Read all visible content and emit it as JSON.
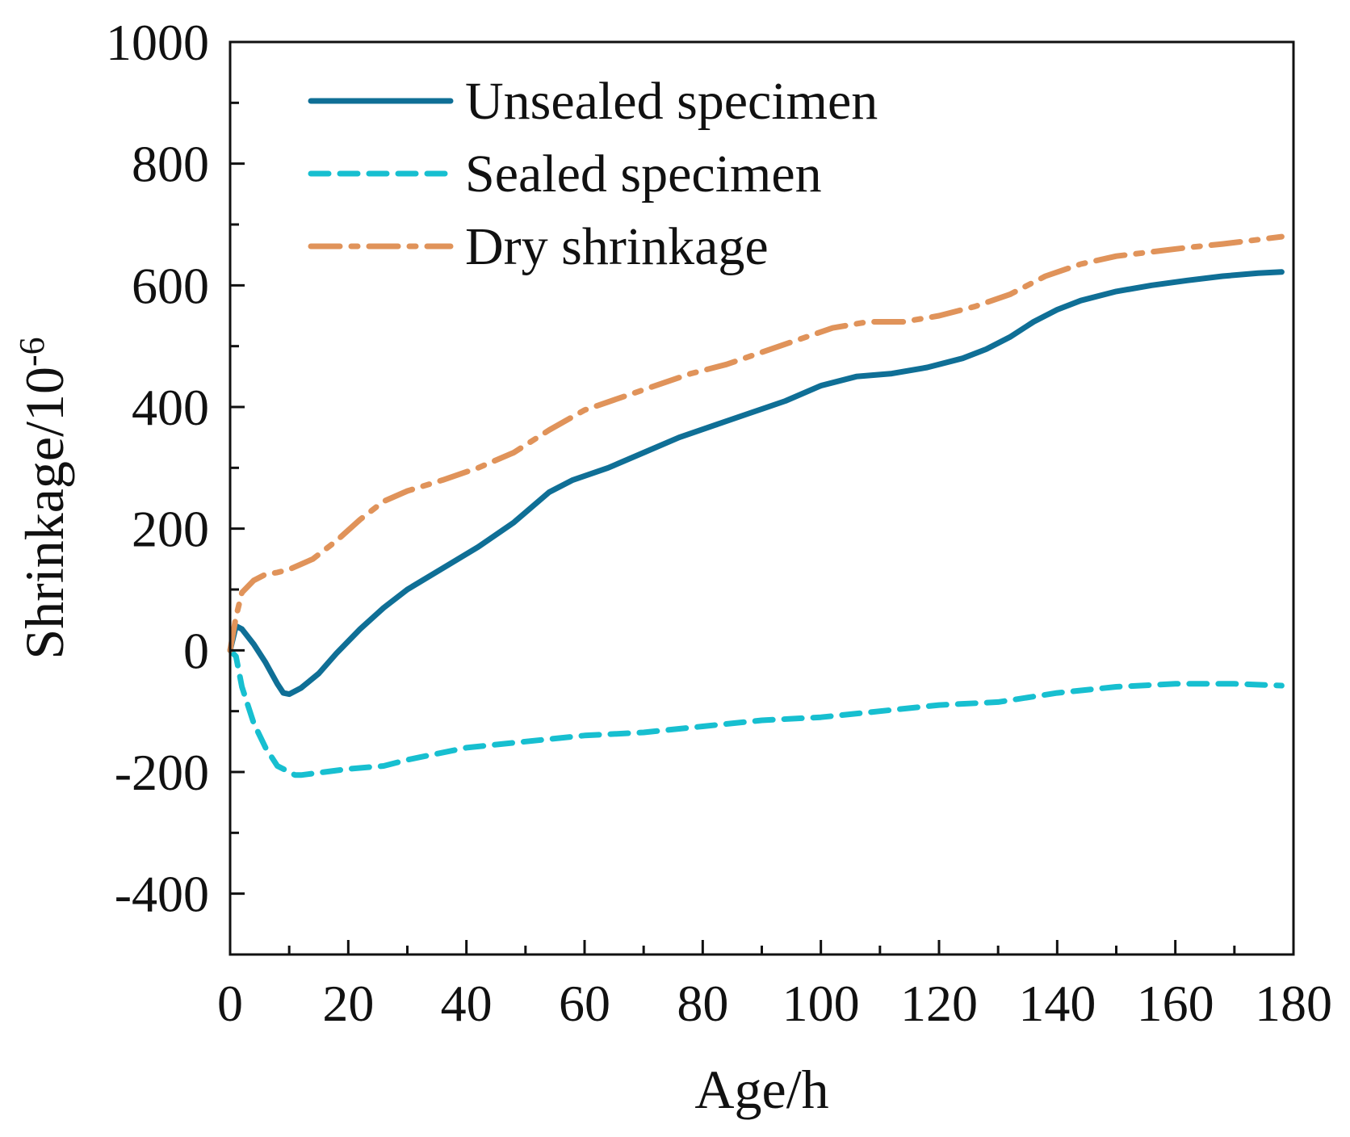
{
  "chart_data": {
    "type": "line",
    "title": "",
    "xlabel": "Age/h",
    "ylabel": "Shrinkage/10",
    "ylabel_exponent": "-6",
    "xlim": [
      0,
      180
    ],
    "ylim": [
      -500,
      1000
    ],
    "x_ticks": [
      0,
      20,
      40,
      60,
      80,
      100,
      120,
      140,
      160,
      180
    ],
    "x_tick_labels": [
      "0",
      "20",
      "40",
      "60",
      "80",
      "100",
      "120",
      "140",
      "160",
      "180"
    ],
    "y_ticks": [
      -400,
      -200,
      0,
      200,
      400,
      600,
      800,
      1000
    ],
    "y_tick_labels": [
      "-400",
      "-200",
      "0",
      "200",
      "400",
      "600",
      "800",
      "1000"
    ],
    "grid": false,
    "legend_position": "top-left",
    "series": [
      {
        "name": "Unsealed specimen",
        "color": "#0f6f96",
        "dash": "solid",
        "x": [
          0,
          1,
          2,
          4,
          6,
          8,
          9,
          10,
          12,
          15,
          18,
          22,
          26,
          30,
          36,
          42,
          48,
          54,
          58,
          64,
          70,
          76,
          82,
          88,
          94,
          100,
          106,
          112,
          118,
          124,
          128,
          132,
          136,
          140,
          144,
          150,
          156,
          162,
          168,
          174,
          178
        ],
        "y": [
          0,
          40,
          35,
          10,
          -20,
          -55,
          -70,
          -72,
          -62,
          -38,
          -5,
          35,
          70,
          100,
          135,
          170,
          210,
          260,
          280,
          300,
          325,
          350,
          370,
          390,
          410,
          435,
          450,
          455,
          465,
          480,
          495,
          515,
          540,
          560,
          575,
          590,
          600,
          608,
          615,
          620,
          622
        ]
      },
      {
        "name": "Sealed specimen",
        "color": "#17bfd0",
        "dash": "dashed",
        "x": [
          0,
          1,
          2,
          4,
          6,
          8,
          10,
          11,
          12,
          16,
          20,
          26,
          30,
          40,
          50,
          60,
          70,
          80,
          90,
          100,
          110,
          120,
          130,
          140,
          150,
          160,
          170,
          178
        ],
        "y": [
          0,
          -10,
          -60,
          -120,
          -160,
          -190,
          -200,
          -205,
          -205,
          -200,
          -195,
          -190,
          -180,
          -160,
          -150,
          -140,
          -135,
          -125,
          -115,
          -110,
          -100,
          -90,
          -85,
          -70,
          -60,
          -55,
          -55,
          -58
        ]
      },
      {
        "name": "Dry shrinkage",
        "color": "#e0935a",
        "dash": "dashdot",
        "x": [
          0,
          1,
          2,
          4,
          6,
          8,
          10,
          14,
          18,
          22,
          26,
          30,
          36,
          42,
          48,
          54,
          60,
          66,
          72,
          78,
          84,
          90,
          96,
          102,
          108,
          114,
          120,
          126,
          132,
          138,
          144,
          150,
          156,
          162,
          168,
          174,
          178
        ],
        "y": [
          0,
          55,
          95,
          115,
          125,
          128,
          133,
          150,
          180,
          215,
          245,
          262,
          280,
          300,
          325,
          362,
          395,
          415,
          435,
          455,
          470,
          490,
          510,
          530,
          540,
          540,
          550,
          565,
          585,
          615,
          635,
          648,
          655,
          662,
          668,
          675,
          680
        ]
      }
    ]
  }
}
